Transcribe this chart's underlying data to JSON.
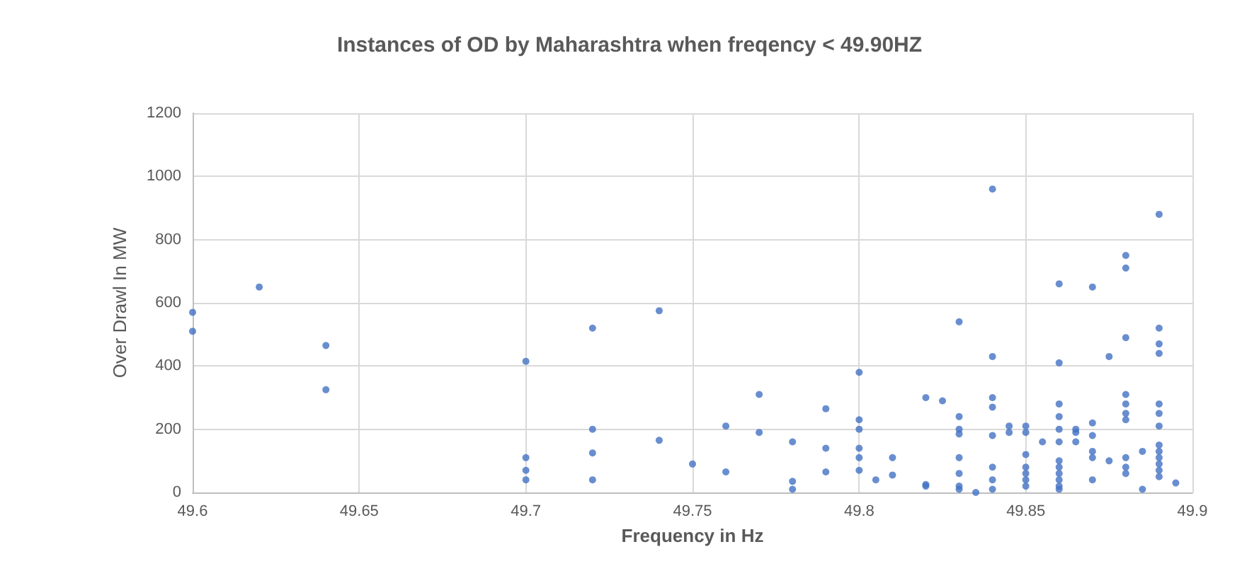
{
  "chart_data": {
    "type": "scatter",
    "title": "Instances of OD by Maharashtra when freqency < 49.90HZ",
    "xlabel": "Frequency in Hz",
    "ylabel": "Over Drawl In MW",
    "x": [
      49.6,
      49.6,
      49.62,
      49.64,
      49.64,
      49.7,
      49.7,
      49.7,
      49.7,
      49.72,
      49.72,
      49.72,
      49.72,
      49.74,
      49.74,
      49.75,
      49.76,
      49.76,
      49.77,
      49.77,
      49.78,
      49.78,
      49.78,
      49.79,
      49.79,
      49.79,
      49.8,
      49.8,
      49.8,
      49.8,
      49.8,
      49.8,
      49.805,
      49.81,
      49.81,
      49.82,
      49.82,
      49.82,
      49.825,
      49.83,
      49.83,
      49.83,
      49.83,
      49.83,
      49.83,
      49.83,
      49.83,
      49.835,
      49.84,
      49.84,
      49.84,
      49.84,
      49.84,
      49.84,
      49.84,
      49.84,
      49.845,
      49.845,
      49.85,
      49.85,
      49.85,
      49.85,
      49.85,
      49.85,
      49.85,
      49.855,
      49.86,
      49.86,
      49.86,
      49.86,
      49.86,
      49.86,
      49.86,
      49.86,
      49.86,
      49.86,
      49.86,
      49.86,
      49.865,
      49.865,
      49.865,
      49.87,
      49.87,
      49.87,
      49.87,
      49.87,
      49.87,
      49.875,
      49.875,
      49.88,
      49.88,
      49.88,
      49.88,
      49.88,
      49.88,
      49.88,
      49.88,
      49.88,
      49.88,
      49.885,
      49.885,
      49.89,
      49.89,
      49.89,
      49.89,
      49.89,
      49.89,
      49.89,
      49.89,
      49.89,
      49.89,
      49.89,
      49.89,
      49.89,
      49.895
    ],
    "values": [
      570,
      510,
      650,
      465,
      325,
      415,
      110,
      70,
      40,
      520,
      200,
      125,
      40,
      575,
      165,
      90,
      210,
      65,
      310,
      190,
      35,
      10,
      160,
      265,
      140,
      65,
      380,
      230,
      200,
      140,
      110,
      70,
      40,
      55,
      110,
      300,
      25,
      20,
      290,
      540,
      240,
      200,
      185,
      110,
      60,
      20,
      10,
      0,
      960,
      430,
      300,
      270,
      180,
      80,
      40,
      10,
      210,
      190,
      210,
      190,
      120,
      80,
      60,
      40,
      20,
      160,
      660,
      410,
      280,
      240,
      200,
      160,
      100,
      80,
      60,
      40,
      20,
      10,
      200,
      190,
      160,
      650,
      220,
      180,
      130,
      110,
      40,
      430,
      100,
      750,
      710,
      490,
      310,
      280,
      250,
      230,
      110,
      80,
      60,
      130,
      10,
      880,
      520,
      470,
      440,
      280,
      250,
      210,
      150,
      130,
      110,
      90,
      70,
      50,
      30
    ],
    "color": "#4472c4",
    "marker": "circle",
    "xlim": [
      49.6,
      49.9
    ],
    "xticks": [
      49.6,
      49.65,
      49.7,
      49.75,
      49.8,
      49.85,
      49.9
    ],
    "ylim": [
      0,
      1200
    ],
    "yticks": [
      0,
      200,
      400,
      600,
      800,
      1000,
      1200
    ],
    "grid": true
  }
}
